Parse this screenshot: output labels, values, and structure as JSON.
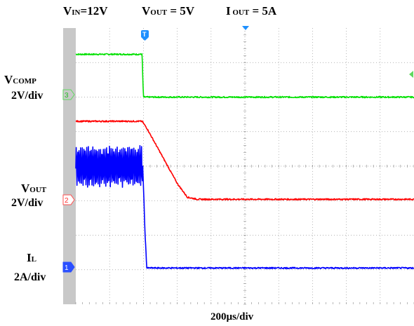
{
  "header": {
    "vin_sym": "V",
    "vin_sub": "IN",
    "vin_val": "=12V",
    "vout_sym": "V",
    "vout_sub": "OUT",
    "vout_val": " = 5V",
    "iout_sym": "I",
    "iout_sub": " OUT",
    "iout_val": " = 5A"
  },
  "labels": {
    "vcomp_sym": "V",
    "vcomp_sub": "COMP",
    "vcomp_scale": "2V/div",
    "vout_sym": "V",
    "vout_sub": "OUT",
    "vout_scale": "2V/div",
    "il_sym": "I",
    "il_sub": "L",
    "il_scale": "2A/div"
  },
  "markers": {
    "ch3": "3",
    "ch2": "2",
    "ch1": "1",
    "trigger": "T"
  },
  "colors": {
    "ch1": "#0000ff",
    "ch2": "#ff0000",
    "ch3": "#00e000",
    "grid": "#9a9a9a",
    "leftbar": "#c8c8c8"
  },
  "chart_data": {
    "type": "line",
    "title": "",
    "xlabel": "200µs/div",
    "x_divisions": 10,
    "y_divisions": 8,
    "trigger_div": 2.0,
    "series": [
      {
        "name": "VCOMP",
        "color": "#00e000",
        "scale": "2V/div",
        "x": [
          0,
          1.96,
          2.0,
          10
        ],
        "y": [
          7.24,
          7.24,
          6.0,
          6.0
        ],
        "noise": 0.02
      },
      {
        "name": "VOUT",
        "color": "#ff0000",
        "scale": "2V/div",
        "x": [
          0,
          1.96,
          2.1,
          3.0,
          3.3,
          3.6,
          10
        ],
        "y": [
          5.3,
          5.3,
          5.1,
          3.5,
          3.1,
          3.04,
          3.04
        ],
        "noise": 0.02
      },
      {
        "name": "IL",
        "color": "#0000ff",
        "scale": "2A/div",
        "x": [
          0,
          1.98,
          2.05,
          2.1,
          10
        ],
        "y": [
          4.0,
          4.0,
          2.0,
          1.05,
          1.05
        ],
        "noise": 0.02,
        "ripple": 0.55,
        "ripple_end": 1.98
      }
    ]
  }
}
